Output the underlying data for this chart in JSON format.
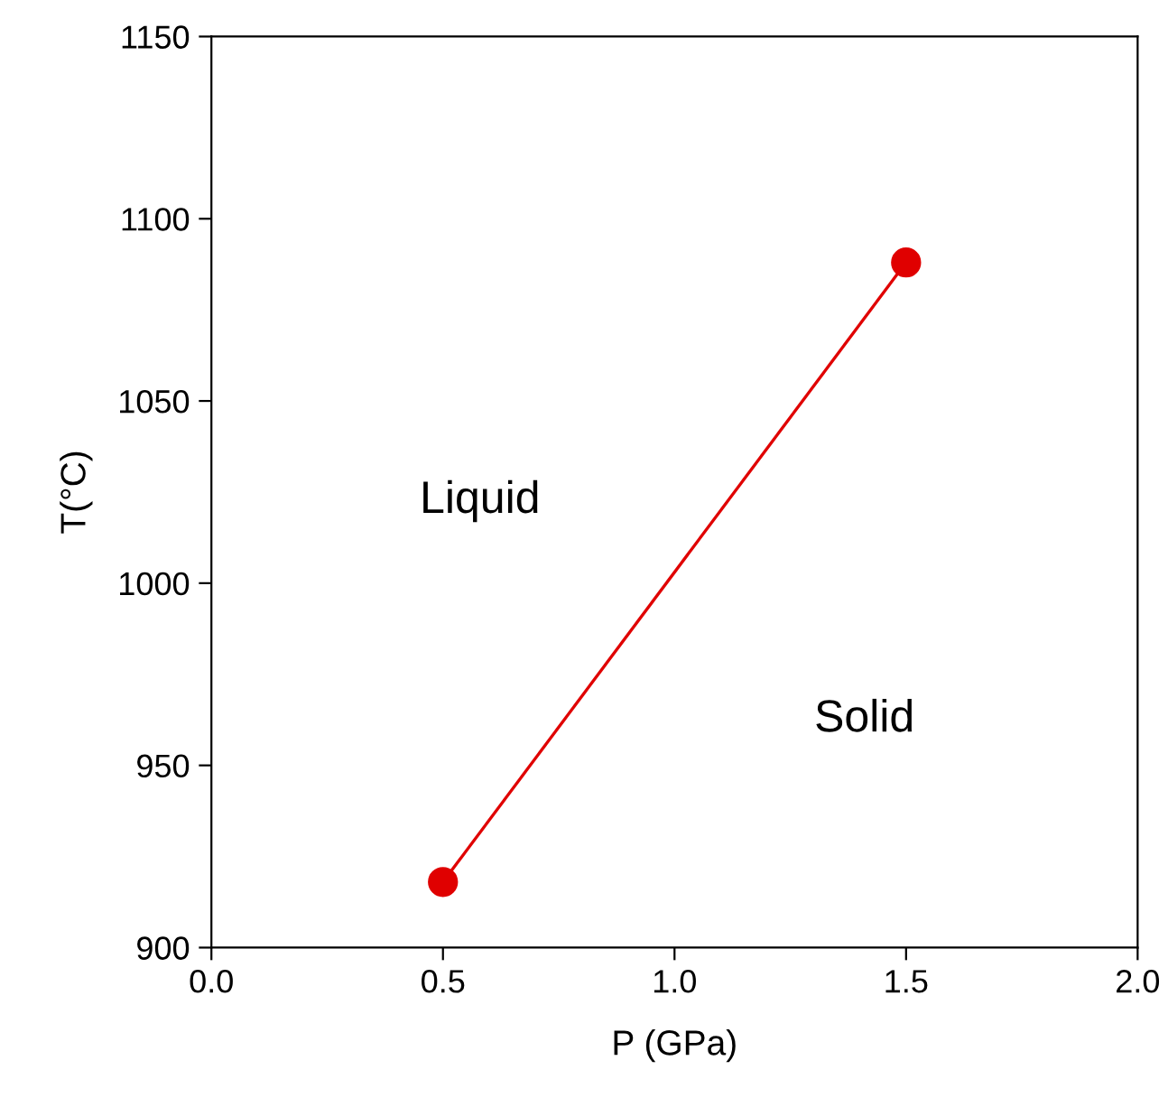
{
  "chart_data": {
    "type": "line",
    "xlabel": "P (GPa)",
    "ylabel": "T(°C)",
    "series": [
      {
        "color": "#e00000",
        "marker": "circle",
        "x": [
          0.5,
          1.5
        ],
        "values": [
          918,
          1088
        ]
      }
    ],
    "xlim": [
      0,
      2
    ],
    "xticks": [
      {
        "value": 0,
        "label": "0.0"
      },
      {
        "value": 0.5,
        "label": "0.5"
      },
      {
        "value": 1,
        "label": "1.0"
      },
      {
        "value": 1.5,
        "label": "1.5"
      },
      {
        "value": 2,
        "label": "2.0"
      }
    ],
    "ylim": [
      900,
      1150
    ],
    "yticks": [
      900,
      950,
      1000,
      1050,
      1100,
      1150
    ],
    "annotations": [
      "Liquid",
      "Solid"
    ]
  }
}
